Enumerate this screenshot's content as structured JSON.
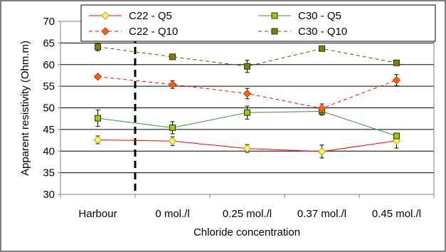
{
  "chart_data": {
    "type": "line",
    "title": "",
    "xlabel": "Chloride concentration",
    "ylabel": "Apparent resistivity (Ohm.m)",
    "ylim": [
      30,
      70
    ],
    "yticks": [
      30,
      35,
      40,
      45,
      50,
      55,
      60,
      65,
      70
    ],
    "grid": true,
    "legend_position": "top",
    "categories": [
      "Harbour",
      "0 mol./l",
      "0.25 mol./l",
      "0.37 mol./l",
      "0.45 mol./l"
    ],
    "series": [
      {
        "name": "C22 - Q5",
        "color": "#ff0000",
        "marker": "diamond",
        "marker_fill": "#ffff66",
        "line_style": "solid",
        "values": [
          42.6,
          42.3,
          40.6,
          39.9,
          42.4
        ],
        "errors": [
          0.9,
          1.0,
          0.9,
          1.5,
          1.7
        ]
      },
      {
        "name": "C30 - Q5",
        "color": "#339933",
        "marker": "square",
        "marker_fill": "#99cc00",
        "line_style": "solid",
        "values": [
          47.6,
          45.4,
          48.9,
          49.2,
          43.5
        ],
        "errors": [
          1.9,
          1.4,
          1.5,
          0.9,
          0.5
        ]
      },
      {
        "name": "C22 - Q10",
        "color": "#ff0000",
        "marker": "diamond",
        "marker_fill": "#ff6600",
        "line_style": "dashed",
        "values": [
          57.2,
          55.4,
          53.3,
          49.9,
          56.4
        ],
        "errors": [
          0.4,
          0.9,
          1.2,
          1.0,
          1.3
        ]
      },
      {
        "name": "C30 - Q10",
        "color": "#336600",
        "marker": "square",
        "marker_fill": "#808000",
        "line_style": "dashed",
        "values": [
          64.1,
          61.8,
          59.6,
          63.7,
          60.4
        ],
        "errors": [
          0.9,
          0.3,
          1.4,
          0.3,
          0.3
        ]
      }
    ],
    "divider": {
      "between_categories": [
        0,
        1
      ],
      "style": "thick dashed"
    }
  }
}
